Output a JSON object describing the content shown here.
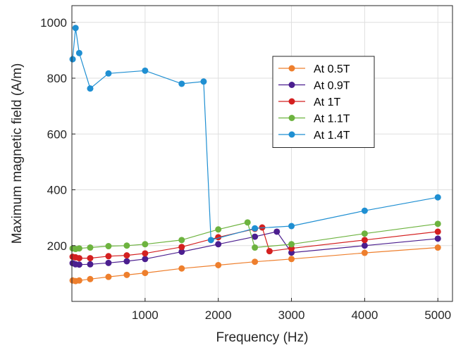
{
  "chart_data": {
    "type": "line",
    "title": "",
    "xlabel": "Frequency (Hz)",
    "ylabel": "Maximum magnetic field (A/m)",
    "xlim": [
      0,
      5200
    ],
    "ylim": [
      0,
      1060
    ],
    "xticks": [
      1000,
      2000,
      3000,
      4000,
      5000
    ],
    "yticks": [
      200,
      400,
      600,
      800,
      1000
    ],
    "grid": true,
    "legend_position": "upper-right",
    "series": [
      {
        "name": "At 0.5T",
        "color": "#EE7F2D",
        "x": [
          10,
          50,
          100,
          250,
          500,
          750,
          1000,
          1500,
          2000,
          2500,
          3000,
          4000,
          5000
        ],
        "y": [
          75,
          73,
          75,
          80,
          88,
          95,
          102,
          118,
          130,
          142,
          152,
          174,
          193
        ]
      },
      {
        "name": "At 0.9T",
        "color": "#4B1E8F",
        "x": [
          10,
          50,
          100,
          250,
          500,
          750,
          1000,
          1500,
          2000,
          2500,
          2800,
          3000,
          4000,
          5000
        ],
        "y": [
          137,
          133,
          132,
          133,
          138,
          144,
          152,
          178,
          205,
          232,
          250,
          175,
          200,
          225
        ]
      },
      {
        "name": "At 1T",
        "color": "#D42020",
        "x": [
          10,
          50,
          100,
          250,
          500,
          750,
          1000,
          1500,
          2000,
          2500,
          2600,
          2700,
          3000,
          4000,
          5000
        ],
        "y": [
          160,
          158,
          155,
          155,
          162,
          165,
          172,
          195,
          230,
          260,
          265,
          180,
          190,
          220,
          250
        ]
      },
      {
        "name": "At 1.1T",
        "color": "#6DB33F",
        "x": [
          10,
          50,
          100,
          250,
          500,
          750,
          1000,
          1500,
          2000,
          2400,
          2500,
          3000,
          4000,
          5000
        ],
        "y": [
          190,
          188,
          190,
          193,
          198,
          200,
          205,
          220,
          258,
          283,
          193,
          205,
          243,
          278
        ]
      },
      {
        "name": "At 1.4T",
        "color": "#1F8FD2",
        "x": [
          10,
          50,
          100,
          250,
          500,
          1000,
          1500,
          1800,
          1900,
          2500,
          3000,
          4000,
          5000
        ],
        "y": [
          868,
          980,
          890,
          763,
          817,
          827,
          780,
          788,
          220,
          262,
          270,
          325,
          373
        ]
      }
    ]
  }
}
